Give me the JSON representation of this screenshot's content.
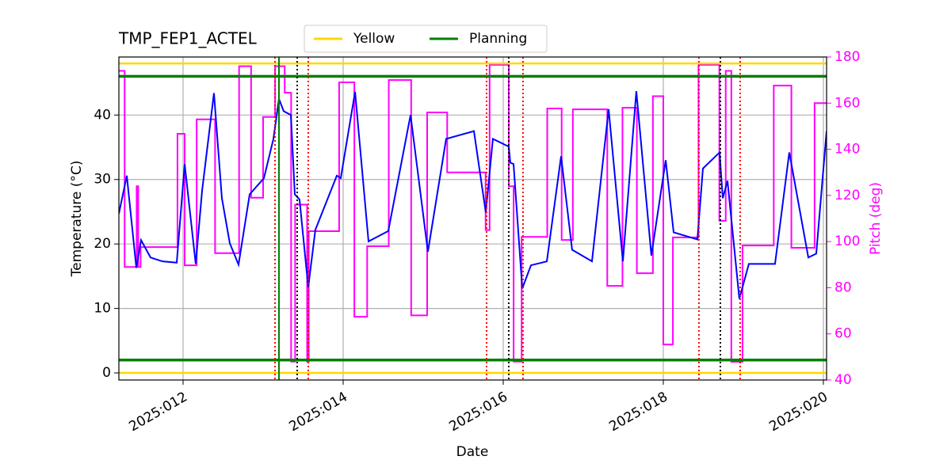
{
  "chart_data": {
    "type": "line",
    "title": "TMP_FEP1_ACTEL",
    "x_label": "Date",
    "y_label": "Temperature (°C)",
    "y2_label": "Pitch (deg)",
    "xlim": [
      11.198,
      20.04
    ],
    "xticks": [
      {
        "value": 12,
        "label": "2025:012"
      },
      {
        "value": 14,
        "label": "2025:014"
      },
      {
        "value": 16,
        "label": "2025:016"
      },
      {
        "value": 18,
        "label": "2025:018"
      },
      {
        "value": 20,
        "label": "2025:020"
      }
    ],
    "ylim": [
      -1.1,
      49
    ],
    "yticks": [
      0,
      10,
      20,
      30,
      40
    ],
    "y2lim": [
      40,
      180
    ],
    "y2ticks": [
      40,
      60,
      80,
      100,
      120,
      140,
      160,
      180
    ],
    "y2_color": "#ff00ff",
    "grid": true,
    "legend": "upper center",
    "series": [
      {
        "color": "#ff00ff",
        "axis": "y2",
        "x": [
          11.198,
          11.27,
          11.27,
          11.42,
          11.42,
          11.44,
          11.44,
          11.47,
          11.47,
          11.93,
          11.93,
          12.02,
          12.02,
          12.17,
          12.17,
          12.4,
          12.4,
          12.7,
          12.7,
          12.85,
          12.85,
          13.0,
          13.0,
          13.15,
          13.15,
          13.27,
          13.27,
          13.35,
          13.35,
          13.4,
          13.4,
          13.55,
          13.55,
          13.57,
          13.57,
          13.95,
          13.95,
          14.14,
          14.14,
          14.3,
          14.3,
          14.57,
          14.57,
          14.85,
          14.85,
          15.05,
          15.05,
          15.3,
          15.3,
          15.78,
          15.78,
          15.83,
          15.83,
          16.07,
          16.07,
          16.13,
          16.13,
          16.23,
          16.23,
          16.55,
          16.55,
          16.73,
          16.73,
          16.87,
          16.87,
          17.3,
          17.3,
          17.49,
          17.49,
          17.67,
          17.67,
          17.87,
          17.87,
          18.0,
          18.0,
          18.12,
          18.12,
          18.44,
          18.44,
          18.7,
          18.7,
          18.78,
          18.78,
          18.85,
          18.85,
          18.99,
          18.99,
          19.38,
          19.38,
          19.6,
          19.6,
          19.89,
          19.89,
          20.04
        ],
        "values": [
          174,
          174,
          89,
          89,
          124,
          124,
          89,
          89,
          97.6,
          97.6,
          146.7,
          146.7,
          89.7,
          89.7,
          153,
          153,
          95,
          95,
          176,
          176,
          119,
          119,
          154,
          154,
          176,
          176,
          164.5,
          164.5,
          48,
          48,
          116,
          116,
          48,
          48,
          104.5,
          104.5,
          169,
          169,
          67.4,
          67.4,
          98,
          98,
          170,
          170,
          68,
          68,
          156,
          156,
          130,
          130,
          105,
          105,
          176.6,
          176.6,
          124,
          124,
          48,
          48,
          102,
          102,
          157.7,
          157.7,
          100.7,
          100.7,
          157.3,
          157.3,
          80.8,
          80.8,
          158,
          158,
          86.3,
          86.3,
          163,
          163,
          55.4,
          55.4,
          101.8,
          101.8,
          176.6,
          176.6,
          109,
          109,
          174,
          174,
          47.9,
          47.9,
          98.3,
          98.3,
          167.6,
          167.6,
          97.3,
          97.3,
          160,
          160
        ]
      },
      {
        "color": "#0000ff",
        "x": [
          11.198,
          11.297,
          11.416,
          11.475,
          11.594,
          11.743,
          11.921,
          12.02,
          12.158,
          12.238,
          12.386,
          12.485,
          12.584,
          12.693,
          12.832,
          13.01,
          13.129,
          13.198,
          13.257,
          13.347,
          13.396,
          13.455,
          13.564,
          13.653,
          13.921,
          13.97,
          14.149,
          14.317,
          14.564,
          14.842,
          15.059,
          15.287,
          15.634,
          15.782,
          15.871,
          16.069,
          16.089,
          16.129,
          16.238,
          16.347,
          16.545,
          16.723,
          16.861,
          17.109,
          17.317,
          17.495,
          17.663,
          17.851,
          18.03,
          18.129,
          18.426,
          18.495,
          18.703,
          18.743,
          18.802,
          18.95,
          19.069,
          19.396,
          19.574,
          19.812,
          19.911,
          20.04
        ],
        "values": [
          24.7,
          30.6,
          16.3,
          20.6,
          17.9,
          17.3,
          17.1,
          32.4,
          16.9,
          28.3,
          43.4,
          27.1,
          20.1,
          16.8,
          27.7,
          30.2,
          36.3,
          42.5,
          40.6,
          40,
          27.7,
          26.9,
          13.3,
          22.2,
          30.6,
          30.2,
          43.6,
          20.4,
          22,
          40,
          18.8,
          36.3,
          37.5,
          24.9,
          36.3,
          35.1,
          32.6,
          32.4,
          13.1,
          16.7,
          17.3,
          33.6,
          19.1,
          17.3,
          40.9,
          17.3,
          43.7,
          18.2,
          33,
          21.8,
          20.7,
          31.7,
          34.2,
          27.1,
          29.8,
          11.5,
          16.9,
          16.9,
          34.2,
          17.9,
          18.5,
          37.5
        ]
      }
    ],
    "limit_lines": [
      {
        "name": "Yellow",
        "color": "#ffd700",
        "values": [
          48,
          0
        ]
      },
      {
        "name": "Planning",
        "color": "#008000",
        "values": [
          46,
          2
        ]
      }
    ],
    "vlines": [
      {
        "color": "#ff0000",
        "style": "dotted",
        "x": [
          13.149,
          13.564,
          15.792,
          16.247,
          18.445,
          18.96
        ]
      },
      {
        "color": "#000000",
        "style": "dotted",
        "x": [
          13.426,
          16.069,
          18.713
        ]
      },
      {
        "color": "#008000",
        "style": "solid",
        "x": [
          13.198
        ]
      }
    ]
  }
}
